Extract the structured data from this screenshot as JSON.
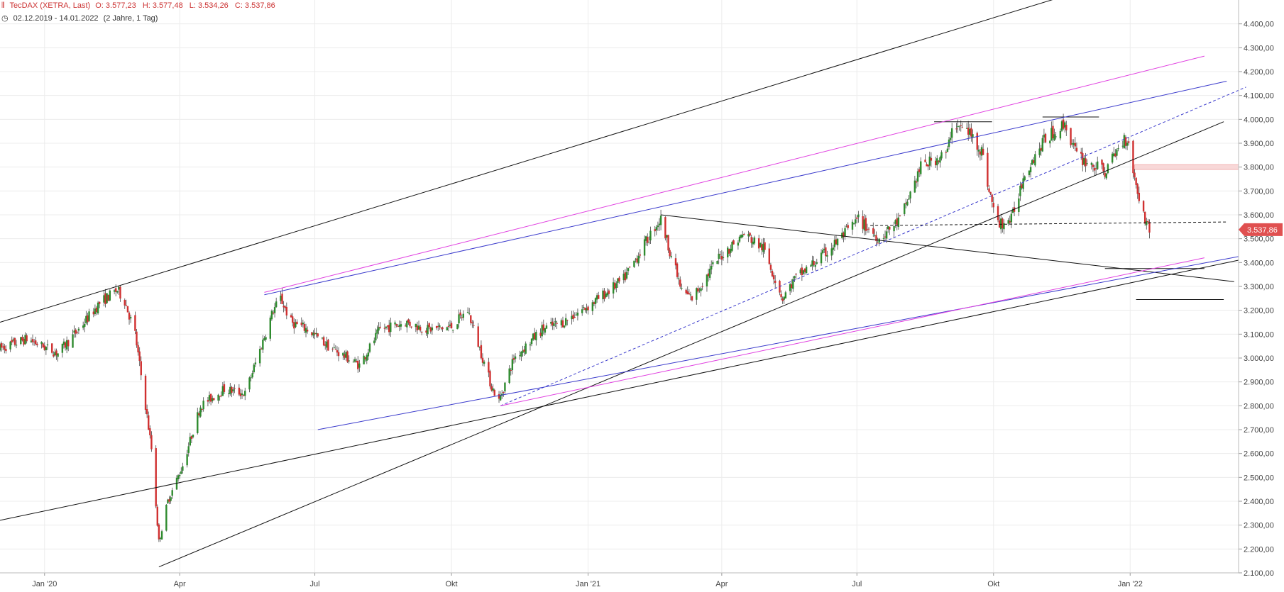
{
  "header": {
    "instrument": "TecDAX (XETRA, Last)",
    "ohlc": {
      "open": "O: 3.577,23",
      "high": "H: 3.577,48",
      "low": "L: 3.534,26",
      "close": "C: 3.537,86"
    },
    "range": "02.12.2019 - 14.01.2022",
    "period": "(2 Jahre, 1 Tag)",
    "icons": {
      "chart": "candle-chart-icon",
      "clock": "clock-icon"
    }
  },
  "colors": {
    "up": "#2e8b2e",
    "down": "#d03030",
    "wick": "#444444",
    "grid": "#ececec",
    "trend_black": "#111111",
    "trend_blue": "#3a3acc",
    "trend_magenta": "#e040e0",
    "last_price_bg": "#e05050",
    "resistance_zone": "#f8d8d8"
  },
  "chart_data": {
    "type": "candlestick",
    "x_range": [
      "2019-12-02",
      "2022-03-15"
    ],
    "ylim": [
      2100,
      4500
    ],
    "y_ticks": [
      2100,
      2200,
      2300,
      2400,
      2500,
      2600,
      2700,
      2800,
      2900,
      3000,
      3100,
      3200,
      3300,
      3400,
      3500,
      3600,
      3700,
      3800,
      3900,
      4000,
      4100,
      4200,
      4300,
      4400
    ],
    "y_tick_labels": [
      "2.100,00",
      "2.200,00",
      "2.300,00",
      "2.400,00",
      "2.500,00",
      "2.600,00",
      "2.700,00",
      "2.800,00",
      "2.900,00",
      "3.000,00",
      "3.100,00",
      "3.200,00",
      "3.300,00",
      "3.400,00",
      "3.500,00",
      "3.600,00",
      "3.700,00",
      "3.800,00",
      "3.900,00",
      "4.000,00",
      "4.100,00",
      "4.200,00",
      "4.300,00",
      "4.400,00"
    ],
    "x_ticks": [
      {
        "date": "2020-01-01",
        "label": "Jan '20"
      },
      {
        "date": "2020-04-01",
        "label": "Apr"
      },
      {
        "date": "2020-07-01",
        "label": "Jul"
      },
      {
        "date": "2020-10-01",
        "label": "Okt"
      },
      {
        "date": "2021-01-01",
        "label": "Jan '21"
      },
      {
        "date": "2021-04-01",
        "label": "Apr"
      },
      {
        "date": "2021-07-01",
        "label": "Jul"
      },
      {
        "date": "2021-10-01",
        "label": "Okt"
      },
      {
        "date": "2022-01-01",
        "label": "Jan '22"
      }
    ],
    "price_path": [
      [
        "2019-12-02",
        3040
      ],
      [
        "2019-12-20",
        3080
      ],
      [
        "2020-01-10",
        3020
      ],
      [
        "2020-01-24",
        3120
      ],
      [
        "2020-02-07",
        3230
      ],
      [
        "2020-02-19",
        3285
      ],
      [
        "2020-02-24",
        3240
      ],
      [
        "2020-03-02",
        3100
      ],
      [
        "2020-03-09",
        2800
      ],
      [
        "2020-03-13",
        2620
      ],
      [
        "2020-03-18",
        2230
      ],
      [
        "2020-03-24",
        2400
      ],
      [
        "2020-04-03",
        2550
      ],
      [
        "2020-04-15",
        2800
      ],
      [
        "2020-05-01",
        2870
      ],
      [
        "2020-05-15",
        2850
      ],
      [
        "2020-06-03",
        3200
      ],
      [
        "2020-06-08",
        3250
      ],
      [
        "2020-06-15",
        3150
      ],
      [
        "2020-06-26",
        3120
      ],
      [
        "2020-07-10",
        3050
      ],
      [
        "2020-07-31",
        2970
      ],
      [
        "2020-08-14",
        3120
      ],
      [
        "2020-08-31",
        3150
      ],
      [
        "2020-09-15",
        3120
      ],
      [
        "2020-10-01",
        3130
      ],
      [
        "2020-10-12",
        3200
      ],
      [
        "2020-10-28",
        2880
      ],
      [
        "2020-11-02",
        2820
      ],
      [
        "2020-11-12",
        3000
      ],
      [
        "2020-12-01",
        3120
      ],
      [
        "2020-12-15",
        3150
      ],
      [
        "2021-01-04",
        3230
      ],
      [
        "2021-01-25",
        3330
      ],
      [
        "2021-02-16",
        3560
      ],
      [
        "2021-02-19",
        3580
      ],
      [
        "2021-03-05",
        3280
      ],
      [
        "2021-03-12",
        3250
      ],
      [
        "2021-03-30",
        3420
      ],
      [
        "2021-04-16",
        3520
      ],
      [
        "2021-04-29",
        3460
      ],
      [
        "2021-05-12",
        3250
      ],
      [
        "2021-05-20",
        3330
      ],
      [
        "2021-06-10",
        3440
      ],
      [
        "2021-07-02",
        3580
      ],
      [
        "2021-07-16",
        3500
      ],
      [
        "2021-07-30",
        3580
      ],
      [
        "2021-08-13",
        3800
      ],
      [
        "2021-08-31",
        3860
      ],
      [
        "2021-09-03",
        3980
      ],
      [
        "2021-09-14",
        3950
      ],
      [
        "2021-09-23",
        3870
      ],
      [
        "2021-09-28",
        3700
      ],
      [
        "2021-10-04",
        3560
      ],
      [
        "2021-10-13",
        3580
      ],
      [
        "2021-10-22",
        3780
      ],
      [
        "2021-11-05",
        3920
      ],
      [
        "2021-11-18",
        3980
      ],
      [
        "2021-11-26",
        3850
      ],
      [
        "2021-12-03",
        3820
      ],
      [
        "2021-12-15",
        3780
      ],
      [
        "2021-12-28",
        3920
      ],
      [
        "2021-12-31",
        3910
      ],
      [
        "2022-01-04",
        3750
      ],
      [
        "2022-01-10",
        3600
      ],
      [
        "2022-01-14",
        3538
      ]
    ],
    "last_price_label": "3.537,86",
    "last_price": 3537.86,
    "resistance_zone": {
      "from": "2022-01-04",
      "to": "2022-03-15",
      "y_low": 3790,
      "y_high": 3810
    },
    "trendlines": [
      {
        "color": "black",
        "from": [
          "2019-12-02",
          3150
        ],
        "to": [
          "2021-11-30",
          4540
        ]
      },
      {
        "color": "black",
        "from": [
          "2019-12-02",
          2320
        ],
        "to": [
          "2022-03-15",
          3410
        ]
      },
      {
        "color": "black",
        "from": [
          "2020-03-18",
          2125
        ],
        "to": [
          "2022-03-05",
          3990
        ]
      },
      {
        "color": "black",
        "from": [
          "2021-02-19",
          3600
        ],
        "to": [
          "2022-03-12",
          3320
        ]
      },
      {
        "color": "black",
        "from": [
          "2021-08-22",
          3990
        ],
        "to": [
          "2021-09-30",
          3990
        ]
      },
      {
        "color": "black",
        "from": [
          "2021-11-03",
          4010
        ],
        "to": [
          "2021-12-11",
          4010
        ]
      },
      {
        "color": "black",
        "from": [
          "2021-12-15",
          3375
        ],
        "to": [
          "2022-02-20",
          3375
        ]
      },
      {
        "color": "black",
        "from": [
          "2022-01-05",
          3245
        ],
        "to": [
          "2022-03-05",
          3245
        ]
      },
      {
        "color": "black",
        "style": "dashed",
        "from": [
          "2021-07-10",
          3555
        ],
        "to": [
          "2022-03-07",
          3570
        ]
      },
      {
        "color": "blue",
        "from": [
          "2020-05-28",
          3265
        ],
        "to": [
          "2022-03-07",
          4160
        ]
      },
      {
        "color": "blue",
        "from": [
          "2020-07-03",
          2700
        ],
        "to": [
          "2022-03-15",
          3425
        ]
      },
      {
        "color": "blue",
        "style": "dashed",
        "from": [
          "2020-11-03",
          2800
        ],
        "to": [
          "2022-03-20",
          4135
        ]
      },
      {
        "color": "magenta",
        "from": [
          "2020-05-28",
          3275
        ],
        "to": [
          "2022-02-20",
          4265
        ]
      },
      {
        "color": "magenta",
        "from": [
          "2020-11-03",
          2800
        ],
        "to": [
          "2022-02-20",
          3420
        ]
      }
    ]
  }
}
